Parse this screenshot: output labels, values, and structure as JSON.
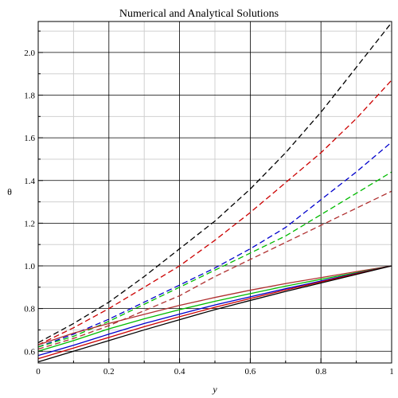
{
  "chart_data": {
    "type": "line",
    "title": "Numerical and Analytical Solutions",
    "xlabel": "y",
    "ylabel": "θ",
    "xlim": [
      0,
      1
    ],
    "ylim": [
      0.545,
      2.145
    ],
    "grid": true,
    "x_ticks": [
      "0",
      "0.2",
      "0.4",
      "0.6",
      "0.8",
      "1"
    ],
    "x_tick_values": [
      0,
      0.2,
      0.4,
      0.6,
      0.8,
      1.0
    ],
    "y_ticks": [
      "0.6",
      "0.8",
      "1.0",
      "1.2",
      "1.4",
      "1.6",
      "1.8",
      "2.0"
    ],
    "y_tick_values": [
      0.6,
      0.8,
      1.0,
      1.2,
      1.4,
      1.6,
      1.8,
      2.0
    ],
    "x": [
      0,
      0.1,
      0.2,
      0.3,
      0.4,
      0.5,
      0.6,
      0.7,
      0.8,
      0.9,
      1.0
    ],
    "series": [
      {
        "color": "#000000",
        "style": "dashed",
        "values": [
          0.64,
          0.73,
          0.83,
          0.95,
          1.08,
          1.21,
          1.36,
          1.53,
          1.72,
          1.93,
          2.14
        ]
      },
      {
        "color": "#cc0000",
        "style": "dashed",
        "values": [
          0.63,
          0.71,
          0.8,
          0.9,
          1.0,
          1.12,
          1.25,
          1.39,
          1.53,
          1.69,
          1.87
        ]
      },
      {
        "color": "#0000cc",
        "style": "dashed",
        "values": [
          0.62,
          0.68,
          0.75,
          0.83,
          0.91,
          0.99,
          1.08,
          1.18,
          1.31,
          1.44,
          1.58
        ]
      },
      {
        "color": "#00bb00",
        "style": "dashed",
        "values": [
          0.62,
          0.67,
          0.74,
          0.82,
          0.9,
          0.98,
          1.06,
          1.14,
          1.24,
          1.34,
          1.44
        ]
      },
      {
        "color": "#b03030",
        "style": "dashed",
        "values": [
          0.61,
          0.66,
          0.72,
          0.79,
          0.86,
          0.95,
          1.03,
          1.11,
          1.19,
          1.27,
          1.35
        ]
      },
      {
        "color": "#b03030",
        "style": "solid",
        "values": [
          0.63,
          0.685,
          0.73,
          0.773,
          0.815,
          0.852,
          0.886,
          0.917,
          0.945,
          0.973,
          1.0
        ]
      },
      {
        "color": "#00bb00",
        "style": "solid",
        "values": [
          0.6,
          0.65,
          0.705,
          0.752,
          0.795,
          0.834,
          0.87,
          0.905,
          0.937,
          0.968,
          1.0
        ]
      },
      {
        "color": "#0000cc",
        "style": "solid",
        "values": [
          0.58,
          0.628,
          0.68,
          0.73,
          0.774,
          0.817,
          0.855,
          0.893,
          0.929,
          0.965,
          1.0
        ]
      },
      {
        "color": "#cc0000",
        "style": "solid",
        "values": [
          0.565,
          0.615,
          0.665,
          0.715,
          0.762,
          0.806,
          0.847,
          0.887,
          0.925,
          0.963,
          1.0
        ]
      },
      {
        "color": "#000000",
        "style": "solid",
        "values": [
          0.55,
          0.6,
          0.65,
          0.7,
          0.748,
          0.795,
          0.838,
          0.88,
          0.92,
          0.96,
          1.0
        ]
      }
    ]
  }
}
